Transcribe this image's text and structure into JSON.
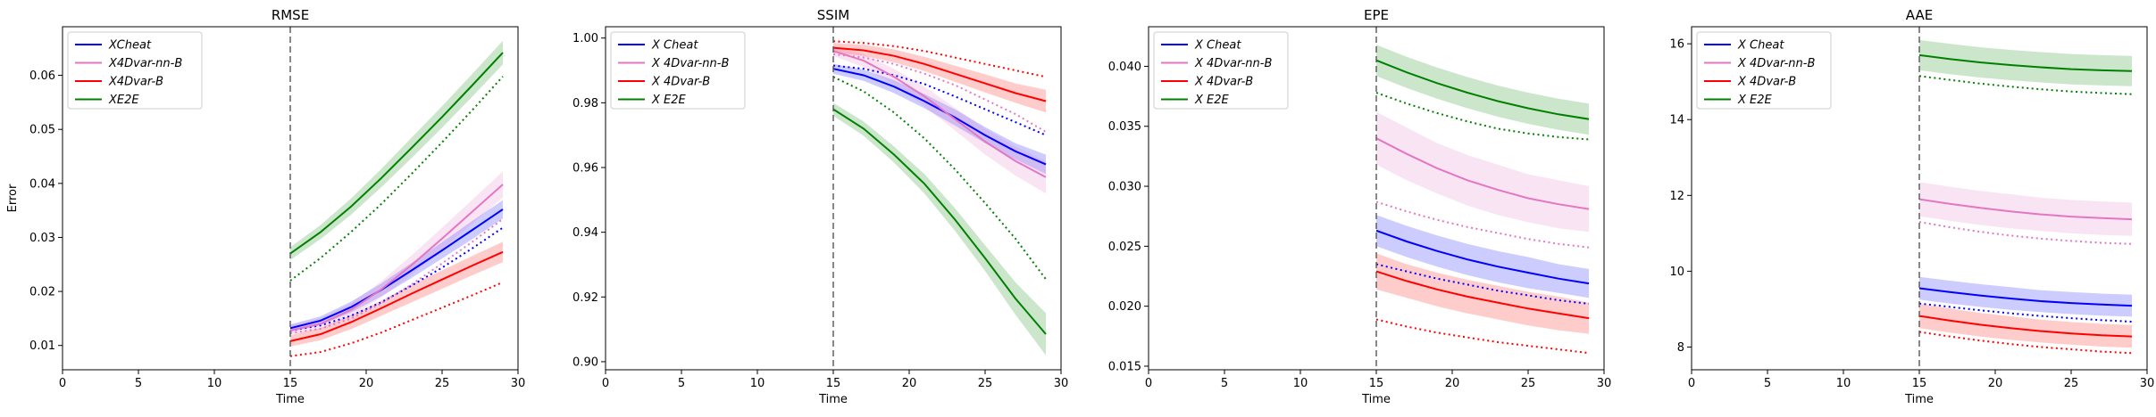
{
  "chart_data": [
    {
      "type": "line",
      "title": "RMSE",
      "xlabel": "Time",
      "ylabel": "Error",
      "xlim": [
        0,
        30
      ],
      "ylim": [
        0.0055,
        0.069
      ],
      "xticks": [
        0,
        5,
        10,
        15,
        20,
        25,
        30
      ],
      "yticks": [
        0.01,
        0.02,
        0.03,
        0.04,
        0.05,
        0.06
      ],
      "ytick_labels": [
        "0.01",
        "0.02",
        "0.03",
        "0.04",
        "0.05",
        "0.06"
      ],
      "vline_x": 15,
      "legend": {
        "location": "upper-left",
        "entries": [
          "XCheat",
          "X4Dvar-nn-B",
          "X4Dvar-B",
          "XE2E"
        ]
      },
      "x": [
        15,
        17,
        19,
        21,
        23,
        25,
        27,
        29
      ],
      "series": [
        {
          "name": "XCheat",
          "color": "#0000ff",
          "values": [
            0.0132,
            0.0146,
            0.0171,
            0.0203,
            0.0239,
            0.0276,
            0.0314,
            0.0352
          ],
          "band_lower": [
            0.0125,
            0.0138,
            0.0161,
            0.0191,
            0.0225,
            0.0261,
            0.0297,
            0.0335
          ],
          "band_upper": [
            0.0139,
            0.0154,
            0.0181,
            0.0215,
            0.0253,
            0.0291,
            0.0331,
            0.0369
          ],
          "dotted": [
            0.0128,
            0.0137,
            0.0155,
            0.018,
            0.0211,
            0.0244,
            0.028,
            0.0318
          ]
        },
        {
          "name": "X4Dvar-nn-B",
          "color": "#e377c2",
          "values": [
            0.0128,
            0.014,
            0.0166,
            0.0204,
            0.0249,
            0.0298,
            0.0348,
            0.0398
          ],
          "band_lower": [
            0.0118,
            0.013,
            0.0154,
            0.0189,
            0.0231,
            0.0278,
            0.0326,
            0.0374
          ],
          "band_upper": [
            0.0138,
            0.015,
            0.0178,
            0.0219,
            0.0267,
            0.0318,
            0.037,
            0.0422
          ],
          "dotted": [
            0.0123,
            0.0131,
            0.015,
            0.0178,
            0.0213,
            0.0252,
            0.0292,
            0.0334
          ]
        },
        {
          "name": "X4Dvar-B",
          "color": "#ff0000",
          "values": [
            0.0108,
            0.0121,
            0.0143,
            0.0169,
            0.0196,
            0.0222,
            0.0248,
            0.0273
          ],
          "band_lower": [
            0.0098,
            0.011,
            0.013,
            0.0155,
            0.018,
            0.0205,
            0.023,
            0.0254
          ],
          "band_upper": [
            0.0118,
            0.0132,
            0.0156,
            0.0183,
            0.0212,
            0.0239,
            0.0266,
            0.0292
          ],
          "dotted": [
            0.008,
            0.0088,
            0.0104,
            0.0124,
            0.0147,
            0.017,
            0.0193,
            0.0217
          ]
        },
        {
          "name": "XE2E",
          "color": "#008000",
          "values": [
            0.027,
            0.031,
            0.0357,
            0.041,
            0.0466,
            0.0523,
            0.0582,
            0.0642
          ],
          "band_lower": [
            0.0258,
            0.0297,
            0.0342,
            0.0393,
            0.0447,
            0.0503,
            0.0561,
            0.062
          ],
          "band_upper": [
            0.0282,
            0.0323,
            0.0372,
            0.0427,
            0.0485,
            0.0543,
            0.0603,
            0.0664
          ],
          "dotted": [
            0.022,
            0.0262,
            0.031,
            0.0362,
            0.0418,
            0.0476,
            0.0536,
            0.0598
          ]
        }
      ]
    },
    {
      "type": "line",
      "title": "SSIM",
      "xlabel": "Time",
      "ylabel": "",
      "xlim": [
        0,
        30
      ],
      "ylim": [
        0.8975,
        1.0035
      ],
      "xticks": [
        0,
        5,
        10,
        15,
        20,
        25,
        30
      ],
      "yticks": [
        0.9,
        0.92,
        0.94,
        0.96,
        0.98,
        1.0
      ],
      "ytick_labels": [
        "0.90",
        "0.92",
        "0.94",
        "0.96",
        "0.98",
        "1.00"
      ],
      "vline_x": 15,
      "legend": {
        "location": "upper-left",
        "entries": [
          "X Cheat",
          "X 4Dvar-nn-B",
          "X 4Dvar-B",
          "X E2E"
        ]
      },
      "x": [
        15,
        17,
        19,
        21,
        23,
        25,
        27,
        29
      ],
      "series": [
        {
          "name": "X Cheat",
          "color": "#0000ff",
          "values": [
            0.9905,
            0.9885,
            0.985,
            0.9805,
            0.9755,
            0.97,
            0.965,
            0.961
          ],
          "band_lower": [
            0.989,
            0.9868,
            0.983,
            0.9783,
            0.973,
            0.9675,
            0.9625,
            0.958
          ],
          "band_upper": [
            0.992,
            0.9902,
            0.987,
            0.9827,
            0.978,
            0.9725,
            0.9675,
            0.964
          ],
          "dotted": [
            0.9915,
            0.9905,
            0.9885,
            0.9858,
            0.982,
            0.978,
            0.974,
            0.97
          ]
        },
        {
          "name": "X 4Dvar-nn-B",
          "color": "#e377c2",
          "values": [
            0.996,
            0.993,
            0.988,
            0.982,
            0.975,
            0.968,
            0.962,
            0.957
          ],
          "band_lower": [
            0.9945,
            0.991,
            0.9855,
            0.979,
            0.9715,
            0.964,
            0.9575,
            0.952
          ],
          "band_upper": [
            0.9975,
            0.995,
            0.9905,
            0.985,
            0.9785,
            0.972,
            0.9665,
            0.962
          ],
          "dotted": [
            0.995,
            0.994,
            0.992,
            0.989,
            0.9855,
            0.981,
            0.9765,
            0.971
          ]
        },
        {
          "name": "X 4Dvar-B",
          "color": "#ff0000",
          "values": [
            0.997,
            0.9962,
            0.9945,
            0.992,
            0.989,
            0.986,
            0.983,
            0.9805
          ],
          "band_lower": [
            0.9955,
            0.9945,
            0.9925,
            0.9898,
            0.9865,
            0.9832,
            0.98,
            0.977
          ],
          "band_upper": [
            0.9985,
            0.9979,
            0.9965,
            0.9942,
            0.9915,
            0.9888,
            0.986,
            0.984
          ],
          "dotted": [
            0.999,
            0.9985,
            0.9975,
            0.996,
            0.994,
            0.992,
            0.99,
            0.988
          ]
        },
        {
          "name": "X E2E",
          "color": "#008000",
          "values": [
            0.978,
            0.972,
            0.964,
            0.955,
            0.944,
            0.932,
            0.9195,
            0.9085
          ],
          "band_lower": [
            0.976,
            0.9698,
            0.9615,
            0.952,
            0.9405,
            0.928,
            0.9145,
            0.902
          ],
          "band_upper": [
            0.98,
            0.9742,
            0.9665,
            0.958,
            0.9475,
            0.936,
            0.9245,
            0.915
          ],
          "dotted": [
            0.988,
            0.9835,
            0.977,
            0.969,
            0.9595,
            0.949,
            0.938,
            0.9255
          ]
        }
      ]
    },
    {
      "type": "line",
      "title": "EPE",
      "xlabel": "Time",
      "ylabel": "",
      "xlim": [
        0,
        30
      ],
      "ylim": [
        0.0147,
        0.0433
      ],
      "xticks": [
        0,
        5,
        10,
        15,
        20,
        25,
        30
      ],
      "yticks": [
        0.015,
        0.02,
        0.025,
        0.03,
        0.035,
        0.04
      ],
      "ytick_labels": [
        "0.015",
        "0.020",
        "0.025",
        "0.030",
        "0.035",
        "0.040"
      ],
      "vline_x": 15,
      "legend": {
        "location": "upper-left",
        "entries": [
          "X Cheat",
          "X 4Dvar-nn-B",
          "X 4Dvar-B",
          "X E2E"
        ]
      },
      "x": [
        15,
        17,
        19,
        21,
        23,
        25,
        27,
        29
      ],
      "series": [
        {
          "name": "X Cheat",
          "color": "#0000ff",
          "values": [
            0.0263,
            0.0254,
            0.0246,
            0.0239,
            0.0233,
            0.0228,
            0.0223,
            0.0219
          ],
          "band_lower": [
            0.025,
            0.0241,
            0.0233,
            0.0226,
            0.022,
            0.0215,
            0.0211,
            0.0207
          ],
          "band_upper": [
            0.0276,
            0.0267,
            0.0259,
            0.0252,
            0.0246,
            0.0241,
            0.0235,
            0.0231
          ],
          "dotted": [
            0.0235,
            0.0229,
            0.0223,
            0.0218,
            0.0213,
            0.0209,
            0.0205,
            0.0202
          ]
        },
        {
          "name": "X 4Dvar-nn-B",
          "color": "#e377c2",
          "values": [
            0.034,
            0.0327,
            0.0315,
            0.0305,
            0.0297,
            0.029,
            0.0285,
            0.0281
          ],
          "band_lower": [
            0.0318,
            0.0305,
            0.0294,
            0.0284,
            0.0276,
            0.027,
            0.0265,
            0.0262
          ],
          "band_upper": [
            0.0362,
            0.0349,
            0.0336,
            0.0326,
            0.0318,
            0.031,
            0.0305,
            0.03
          ],
          "dotted": [
            0.0287,
            0.0279,
            0.0272,
            0.0266,
            0.0261,
            0.0256,
            0.0252,
            0.0249
          ]
        },
        {
          "name": "X 4Dvar-B",
          "color": "#ff0000",
          "values": [
            0.0229,
            0.0221,
            0.0214,
            0.0208,
            0.0203,
            0.0198,
            0.0194,
            0.019
          ],
          "band_lower": [
            0.0214,
            0.0207,
            0.02,
            0.0194,
            0.0189,
            0.0184,
            0.018,
            0.0177
          ],
          "band_upper": [
            0.0244,
            0.0235,
            0.0228,
            0.0222,
            0.0217,
            0.0212,
            0.0208,
            0.0203
          ],
          "dotted": [
            0.0189,
            0.0183,
            0.0178,
            0.0174,
            0.017,
            0.0167,
            0.0164,
            0.0161
          ]
        },
        {
          "name": "X E2E",
          "color": "#008000",
          "values": [
            0.0405,
            0.0395,
            0.0386,
            0.0378,
            0.0371,
            0.0365,
            0.036,
            0.0356
          ],
          "band_lower": [
            0.0392,
            0.0382,
            0.0373,
            0.0365,
            0.0358,
            0.0352,
            0.0347,
            0.0343
          ],
          "band_upper": [
            0.0418,
            0.0408,
            0.0399,
            0.0391,
            0.0384,
            0.0378,
            0.0373,
            0.0369
          ],
          "dotted": [
            0.0378,
            0.0369,
            0.0361,
            0.0354,
            0.0348,
            0.0344,
            0.0341,
            0.0339
          ]
        }
      ]
    },
    {
      "type": "line",
      "title": "AAE",
      "xlabel": "Time",
      "ylabel": "",
      "xlim": [
        0,
        30
      ],
      "ylim": [
        7.4,
        16.45
      ],
      "xticks": [
        0,
        5,
        10,
        15,
        20,
        25,
        30
      ],
      "yticks": [
        8,
        10,
        12,
        14,
        16
      ],
      "ytick_labels": [
        "8",
        "10",
        "12",
        "14",
        "16"
      ],
      "vline_x": 15,
      "legend": {
        "location": "upper-left",
        "entries": [
          "X Cheat",
          "X 4Dvar-nn-B",
          "X 4Dvar-B",
          "X E2E"
        ]
      },
      "x": [
        15,
        17,
        19,
        21,
        23,
        25,
        27,
        29
      ],
      "series": [
        {
          "name": "X Cheat",
          "color": "#0000ff",
          "values": [
            9.55,
            9.45,
            9.36,
            9.28,
            9.21,
            9.16,
            9.12,
            9.09
          ],
          "band_lower": [
            9.25,
            9.15,
            9.06,
            8.98,
            8.92,
            8.87,
            8.83,
            8.8
          ],
          "band_upper": [
            9.85,
            9.75,
            9.66,
            9.58,
            9.5,
            9.45,
            9.41,
            9.38
          ],
          "dotted": [
            9.15,
            9.06,
            8.97,
            8.89,
            8.82,
            8.76,
            8.71,
            8.67
          ]
        },
        {
          "name": "X 4Dvar-nn-B",
          "color": "#e377c2",
          "values": [
            11.9,
            11.78,
            11.67,
            11.58,
            11.5,
            11.44,
            11.4,
            11.37
          ],
          "band_lower": [
            11.45,
            11.33,
            11.22,
            11.13,
            11.06,
            11.0,
            10.96,
            10.93
          ],
          "band_upper": [
            12.35,
            12.23,
            12.12,
            12.03,
            11.94,
            11.88,
            11.84,
            11.81
          ],
          "dotted": [
            11.3,
            11.16,
            11.04,
            10.94,
            10.86,
            10.8,
            10.75,
            10.72
          ]
        },
        {
          "name": "X 4Dvar-B",
          "color": "#ff0000",
          "values": [
            8.82,
            8.7,
            8.59,
            8.5,
            8.42,
            8.36,
            8.31,
            8.28
          ],
          "band_lower": [
            8.5,
            8.38,
            8.28,
            8.19,
            8.12,
            8.06,
            8.01,
            7.98
          ],
          "band_upper": [
            9.14,
            9.02,
            8.9,
            8.81,
            8.72,
            8.66,
            8.61,
            8.58
          ],
          "dotted": [
            8.4,
            8.28,
            8.17,
            8.08,
            8.0,
            7.94,
            7.88,
            7.84
          ]
        },
        {
          "name": "X E2E",
          "color": "#008000",
          "values": [
            15.7,
            15.6,
            15.51,
            15.44,
            15.38,
            15.33,
            15.3,
            15.28
          ],
          "band_lower": [
            15.3,
            15.2,
            15.11,
            15.04,
            14.98,
            14.93,
            14.9,
            14.88
          ],
          "band_upper": [
            16.1,
            16.0,
            15.91,
            15.84,
            15.78,
            15.73,
            15.7,
            15.68
          ],
          "dotted": [
            15.15,
            15.05,
            14.95,
            14.87,
            14.8,
            14.74,
            14.7,
            14.67
          ]
        }
      ]
    }
  ]
}
